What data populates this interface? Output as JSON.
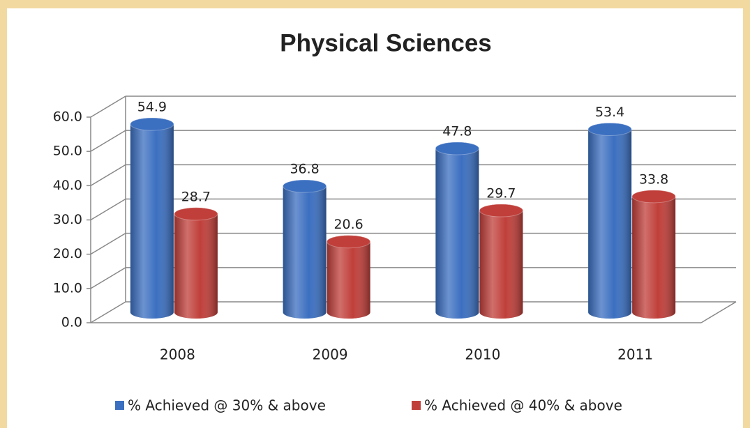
{
  "chart_data": {
    "type": "bar",
    "title": "Physical Sciences",
    "categories": [
      "2008",
      "2009",
      "2010",
      "2011"
    ],
    "series": [
      {
        "name": "% Achieved @ 30% & above",
        "color": "#3b6fc0",
        "values": [
          54.9,
          36.8,
          47.8,
          53.4
        ]
      },
      {
        "name": "% Achieved @ 40% & above",
        "color": "#c03f3a",
        "values": [
          28.7,
          20.6,
          29.7,
          33.8
        ]
      }
    ],
    "ylim": [
      0,
      60
    ],
    "yticks": [
      {
        "value": 0,
        "label": "0.0"
      },
      {
        "value": 10,
        "label": "10.0"
      },
      {
        "value": 20,
        "label": "20.0"
      },
      {
        "value": 30,
        "label": "30.0"
      },
      {
        "value": 40,
        "label": "40.0"
      },
      {
        "value": 50,
        "label": "50.0"
      },
      {
        "value": 60,
        "label": "60.0"
      }
    ],
    "grid": true,
    "legend": "bottom"
  }
}
